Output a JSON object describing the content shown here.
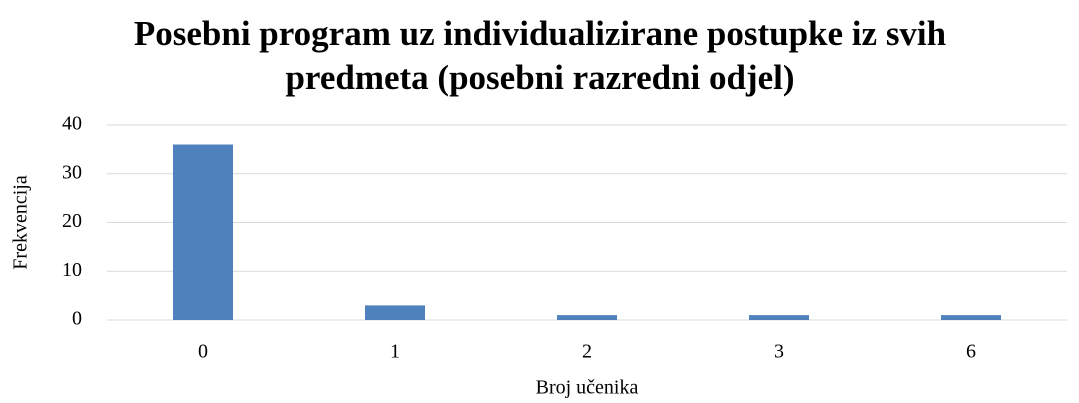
{
  "chart_data": {
    "type": "bar",
    "title": "Posebni program uz individualizirane postupke iz svih predmeta (posebni razredni odjel)",
    "x_label": "Broj učenika",
    "y_label": "Frekvencija",
    "categories": [
      "0",
      "1",
      "2",
      "3",
      "6"
    ],
    "values": [
      36,
      3,
      1,
      1,
      1
    ],
    "color": "#4f81bd",
    "ylim": [
      0,
      40
    ],
    "yticks": [
      0,
      10,
      20,
      30,
      40
    ],
    "grid": true
  }
}
